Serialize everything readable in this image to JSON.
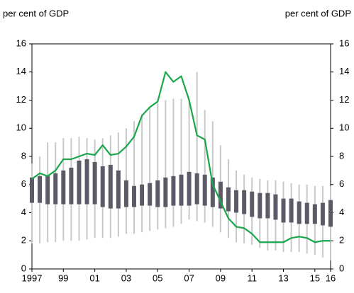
{
  "chart_data": {
    "type": "range-line",
    "y_label_left": "per cent of GDP",
    "y_label_right": "per cent of GDP",
    "x": [
      1997,
      1997.5,
      1998,
      1998.5,
      1999,
      1999.5,
      2000,
      2000.5,
      2001,
      2001.5,
      2002,
      2002.5,
      2003,
      2003.5,
      2004,
      2004.5,
      2005,
      2005.5,
      2006,
      2006.5,
      2007,
      2007.5,
      2008,
      2008.5,
      2009,
      2009.5,
      2010,
      2010.5,
      2011,
      2011.5,
      2012,
      2012.5,
      2013,
      2013.5,
      2014,
      2014.5,
      2015,
      2015.5,
      2016
    ],
    "range": {
      "color": "#c8c8c8",
      "low": [
        1.8,
        1.8,
        1.9,
        1.9,
        2.0,
        2.0,
        2.0,
        2.1,
        2.2,
        2.2,
        2.2,
        2.3,
        2.5,
        2.5,
        2.6,
        2.7,
        2.8,
        2.9,
        3.0,
        3.2,
        3.5,
        3.4,
        3.3,
        3.0,
        2.6,
        2.2,
        1.9,
        1.8,
        1.7,
        1.5,
        1.3,
        1.3,
        1.2,
        1.2,
        1.2,
        1.1,
        1.0,
        0.8,
        0.6
      ],
      "high": [
        7.5,
        8.0,
        9.0,
        9.0,
        9.3,
        9.3,
        9.4,
        9.3,
        9.2,
        9.3,
        9.5,
        9.7,
        10.0,
        10.5,
        11.0,
        11.4,
        11.8,
        12.0,
        12.1,
        12.1,
        12.0,
        14.0,
        11.3,
        10.5,
        8.8,
        7.8,
        7.0,
        6.7,
        6.5,
        6.4,
        6.3,
        6.3,
        6.2,
        6.1,
        6.0,
        6.0,
        5.9,
        5.9,
        5.9
      ]
    },
    "box": {
      "color": "#5b5b68",
      "low": [
        4.7,
        4.7,
        4.6,
        4.6,
        4.6,
        4.6,
        4.6,
        4.6,
        4.6,
        4.4,
        4.3,
        4.3,
        4.4,
        4.4,
        4.5,
        4.5,
        4.4,
        4.4,
        4.5,
        4.5,
        4.5,
        4.6,
        4.5,
        4.4,
        4.3,
        4.1,
        4.0,
        3.9,
        3.7,
        3.6,
        3.6,
        3.5,
        3.3,
        3.3,
        3.2,
        3.2,
        3.2,
        3.1,
        3.0
      ],
      "high": [
        6.5,
        6.6,
        6.6,
        6.8,
        7.0,
        7.2,
        7.7,
        7.8,
        7.6,
        7.3,
        7.4,
        7.0,
        6.3,
        5.9,
        6.0,
        6.1,
        6.3,
        6.5,
        6.6,
        6.7,
        6.9,
        6.8,
        6.7,
        6.5,
        6.2,
        5.8,
        5.6,
        5.6,
        5.5,
        5.4,
        5.4,
        5.3,
        5.0,
        5.0,
        4.8,
        4.7,
        4.6,
        4.7,
        4.9
      ]
    },
    "line": {
      "color": "#1aa64a",
      "values": [
        6.4,
        6.8,
        6.6,
        7.0,
        7.8,
        7.8,
        8.0,
        8.2,
        8.1,
        8.8,
        8.1,
        8.2,
        8.7,
        9.4,
        10.9,
        11.5,
        11.9,
        14.0,
        13.3,
        13.7,
        12.0,
        9.5,
        9.2,
        6.0,
        4.8,
        3.6,
        3.0,
        2.9,
        2.5,
        1.9,
        1.9,
        1.9,
        1.9,
        2.2,
        2.3,
        2.2,
        1.9,
        2.0,
        2.0
      ]
    },
    "xlim": [
      1997,
      2016
    ],
    "xticks": [
      {
        "value": 1997,
        "label": "1997"
      },
      {
        "value": 1999,
        "label": "99"
      },
      {
        "value": 2001,
        "label": "01"
      },
      {
        "value": 2003,
        "label": "03"
      },
      {
        "value": 2005,
        "label": "05"
      },
      {
        "value": 2007,
        "label": "07"
      },
      {
        "value": 2009,
        "label": "09"
      },
      {
        "value": 2011,
        "label": "11"
      },
      {
        "value": 2013,
        "label": "13"
      },
      {
        "value": 2015,
        "label": "15"
      },
      {
        "value": 2016,
        "label": "16"
      }
    ],
    "ylim": [
      0,
      16
    ],
    "yticks": [
      0,
      2,
      4,
      6,
      8,
      10,
      12,
      14,
      16
    ],
    "y2lim": [
      0,
      16
    ],
    "y2ticks": [
      0,
      2,
      4,
      6,
      8,
      10,
      12,
      14,
      16
    ]
  }
}
